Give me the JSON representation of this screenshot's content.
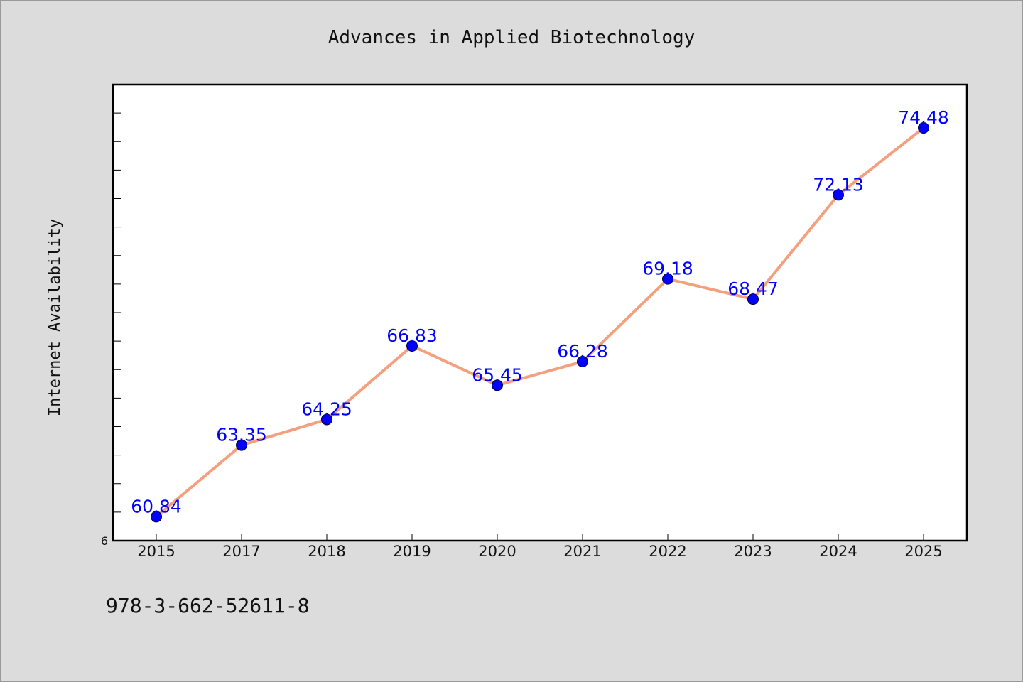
{
  "chart_data": {
    "type": "line",
    "title": "Advances in Applied Biotechnology",
    "xlabel": "",
    "ylabel": "Internet Availability",
    "categories": [
      "2015",
      "2017",
      "2018",
      "2019",
      "2020",
      "2021",
      "2022",
      "2023",
      "2024",
      "2025"
    ],
    "series": [
      {
        "values": [
          60.84,
          63.35,
          64.25,
          66.83,
          65.45,
          66.28,
          69.18,
          68.47,
          72.13,
          74.48
        ],
        "line_color": "#f4a07e",
        "marker_color": "#0000ff"
      }
    ],
    "data_labels": [
      "60.84",
      "63.35",
      "64.25",
      "66.83",
      "65.45",
      "66.28",
      "69.18",
      "68.47",
      "72.13",
      "74.48"
    ],
    "ylim": [
      60,
      76
    ],
    "y_tick_label": "6",
    "y_minor_ticks": 15,
    "grid": false,
    "legend": "none"
  },
  "footer": {
    "isbn": "978-3-662-52611-8"
  },
  "colors": {
    "background": "#dcdcdc",
    "plot_area": "#ffffff",
    "line": "#f4a07e",
    "marker": "#0000ff",
    "data_label": "#0000ff"
  }
}
